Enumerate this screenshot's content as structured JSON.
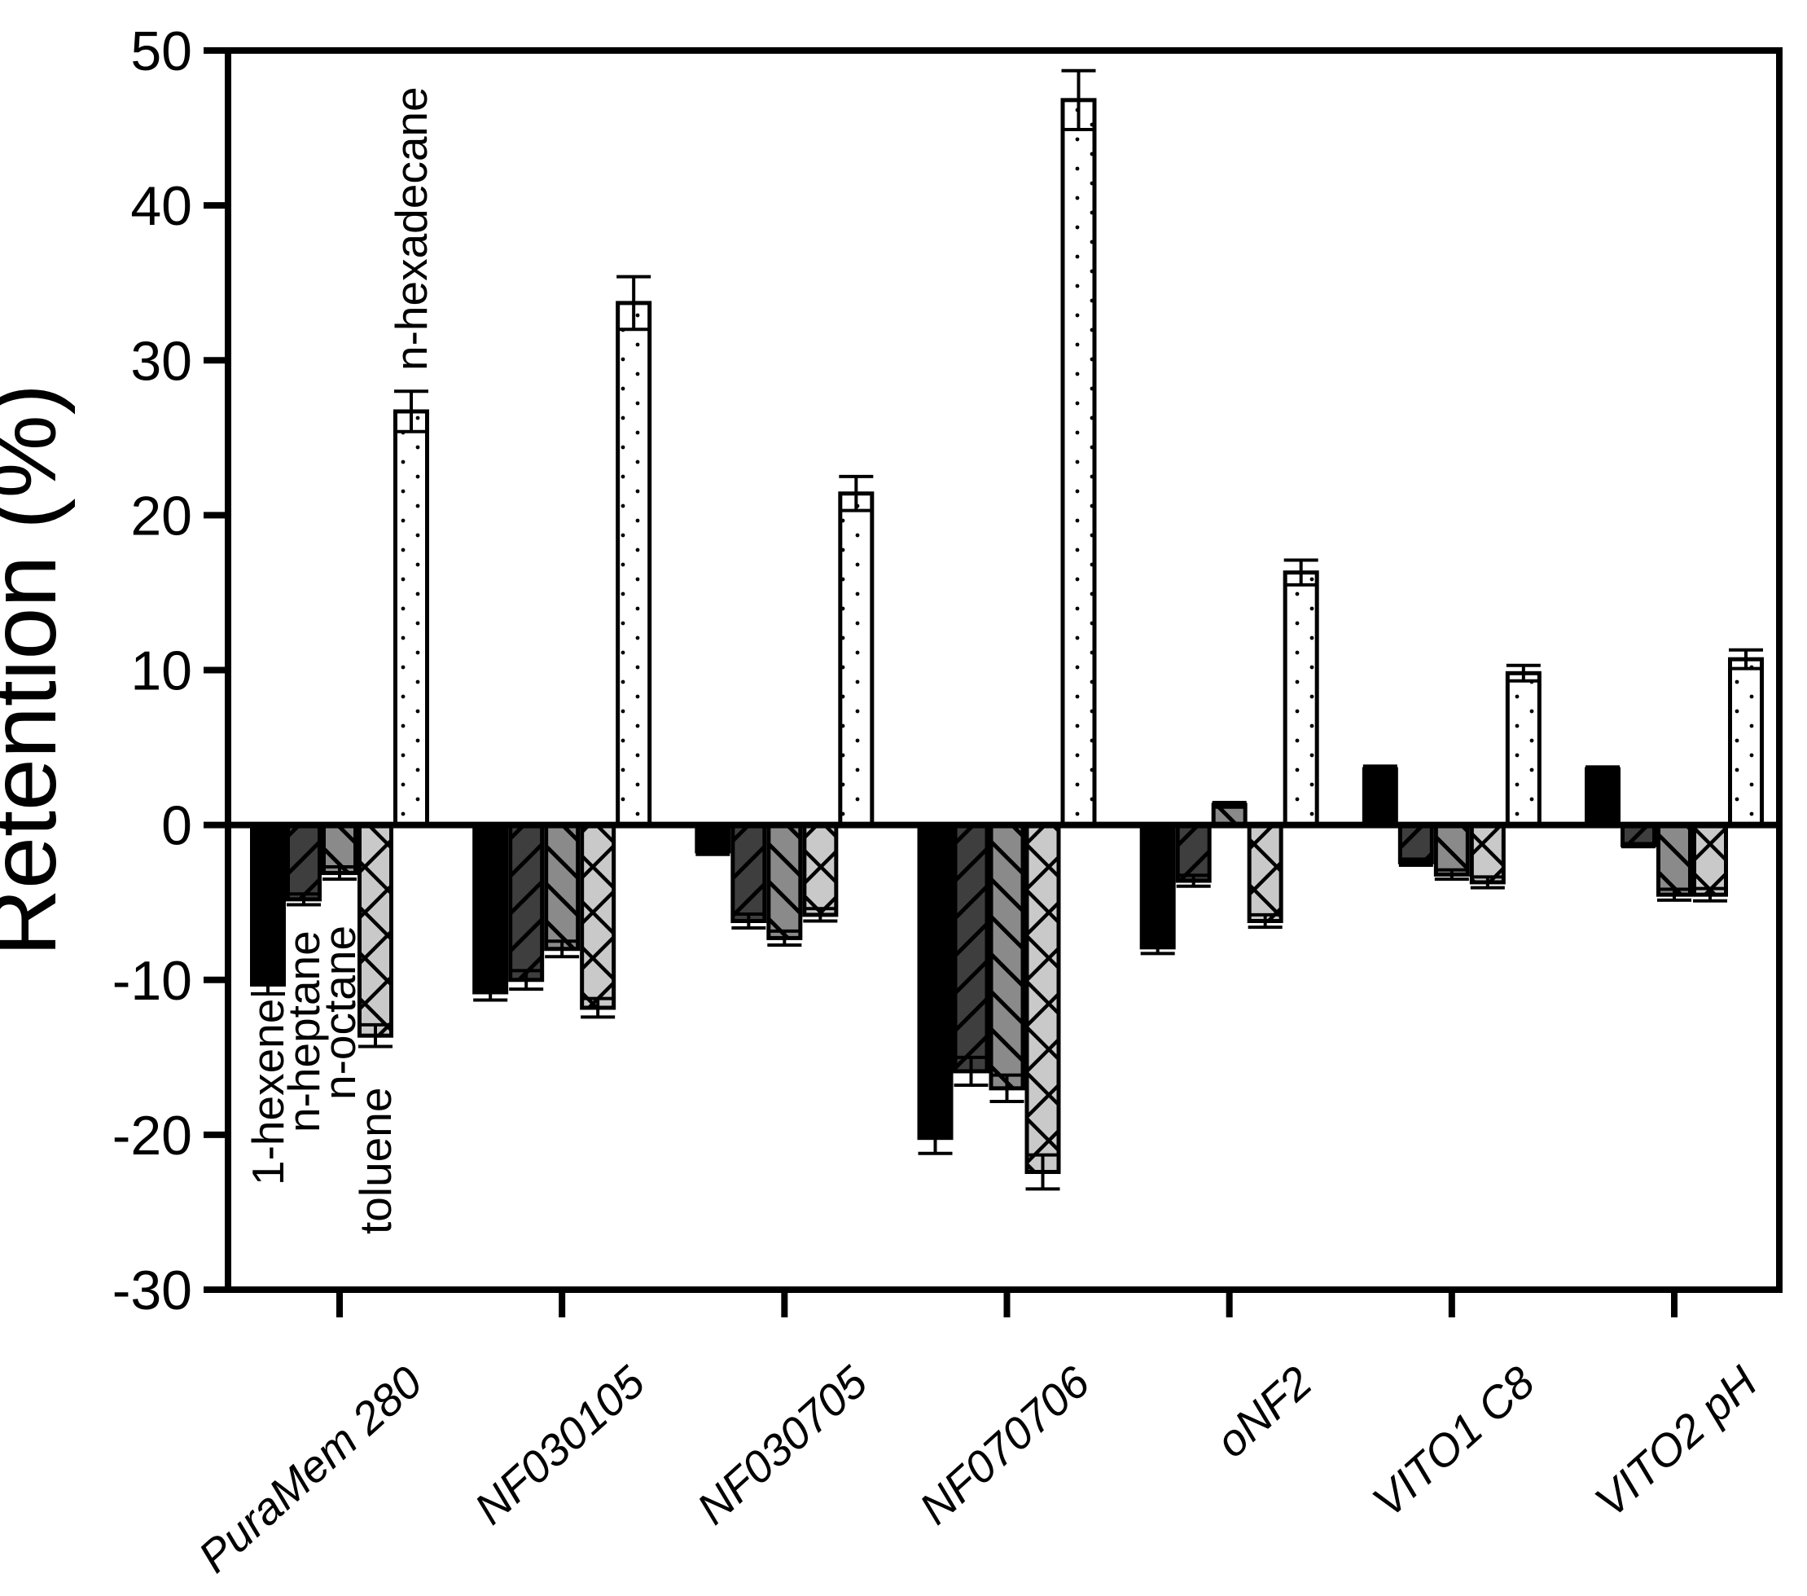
{
  "chart_data": {
    "type": "bar",
    "title": "",
    "ylabel": "Retention (%)",
    "xlabel": "",
    "ylim": [
      -30,
      50
    ],
    "yticks": [
      50,
      40,
      30,
      20,
      10,
      0,
      -10,
      -20,
      -30
    ],
    "grid": false,
    "legend_position": "none (series identified by rotated text annotations inside plot)",
    "categories": [
      "PuraMem 280",
      "NF030105",
      "NF030705",
      "NF070706",
      "oNF2",
      "VITO1 C8",
      "VITO2 pH"
    ],
    "series": [
      {
        "name": "1-hexene",
        "pattern": "solid",
        "fill": "#000000",
        "values": [
          -10.3,
          -10.8,
          -1.7,
          -20.2,
          -7.9,
          3.6,
          3.6
        ],
        "errors": [
          0.6,
          0.5,
          0.2,
          1.0,
          0.4,
          0.2,
          0.15
        ]
      },
      {
        "name": "n-heptane",
        "pattern": "diagonal-up",
        "fill": "#3e3e3e",
        "values": [
          -4.8,
          -10.0,
          -6.2,
          -15.9,
          -3.6,
          -2.4,
          -1.3
        ],
        "errors": [
          0.35,
          0.6,
          0.45,
          0.9,
          0.35,
          0.2,
          0.1
        ]
      },
      {
        "name": "n-octane",
        "pattern": "diagonal-down",
        "fill": "#8a8a8a",
        "values": [
          -3.1,
          -8.0,
          -7.3,
          -17.0,
          1.3,
          -3.2,
          -4.5
        ],
        "errors": [
          0.4,
          0.5,
          0.45,
          0.85,
          0.15,
          0.3,
          0.35
        ]
      },
      {
        "name": "toluene",
        "pattern": "crosshatch",
        "fill": "#c9c9c9",
        "values": [
          -13.6,
          -11.8,
          -5.8,
          -22.4,
          -6.2,
          -3.7,
          -4.5
        ],
        "errors": [
          0.7,
          0.6,
          0.4,
          1.1,
          0.4,
          0.35,
          0.4
        ]
      },
      {
        "name": "n-hexadecane",
        "pattern": "dots",
        "fill": "#ffffff",
        "values": [
          26.7,
          33.7,
          21.4,
          46.8,
          16.3,
          9.8,
          10.7
        ],
        "errors": [
          1.3,
          1.7,
          1.1,
          1.9,
          0.8,
          0.5,
          0.6
        ]
      }
    ],
    "annotations": [
      "1-hexene",
      "n-heptane",
      "n-octane",
      "toluene",
      "n-hexadecane"
    ]
  },
  "colors": {
    "axis": "#000000",
    "bar_outline": "#000000",
    "series_1_hexene": "#000000",
    "series_n_heptane": "#3e3e3e",
    "series_n_octane": "#8a8a8a",
    "series_toluene": "#c9c9c9",
    "series_n_hexadecane": "#ffffff",
    "background": "#ffffff"
  }
}
